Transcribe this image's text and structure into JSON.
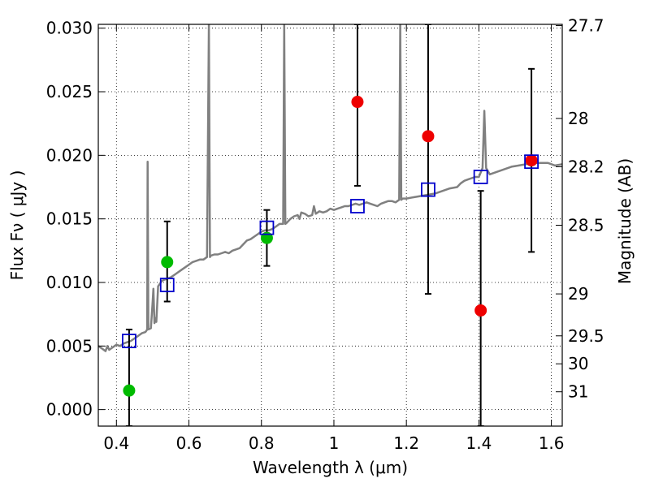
{
  "chart_data": {
    "type": "scatter",
    "xlabel": "Wavelength  λ (μm)",
    "ylabel": "Flux  Fν  ( μJy )",
    "y2label": "Magnitude (AB)",
    "xlim": [
      0.35,
      1.63
    ],
    "ylim": [
      -0.0013,
      0.0303
    ],
    "grid": true,
    "x_ticks": [
      0.4,
      0.6,
      0.8,
      1.0,
      1.2,
      1.4,
      1.6
    ],
    "x_tick_labels": [
      "0.4",
      "0.6",
      "0.8",
      "1",
      "1.2",
      "1.4",
      "1.6"
    ],
    "y_ticks": [
      0.0,
      0.005,
      0.01,
      0.015,
      0.02,
      0.025,
      0.03
    ],
    "y_tick_labels": [
      "0.000",
      "0.005",
      "0.010",
      "0.015",
      "0.020",
      "0.025",
      "0.030"
    ],
    "y2_ticks": [
      {
        "label": "27.7",
        "flux": 0.0302
      },
      {
        "label": "28",
        "flux": 0.0229
      },
      {
        "label": "28.2",
        "flux": 0.0191
      },
      {
        "label": "28.5",
        "flux": 0.0145
      },
      {
        "label": "29",
        "flux": 0.0091
      },
      {
        "label": "29.5",
        "flux": 0.0058
      },
      {
        "label": "30",
        "flux": 0.0036
      },
      {
        "label": "31",
        "flux": 0.0014
      }
    ],
    "model_spectrum": {
      "color": "#808080",
      "points": [
        [
          0.35,
          0.005
        ],
        [
          0.36,
          0.0048
        ],
        [
          0.37,
          0.0046
        ],
        [
          0.375,
          0.005
        ],
        [
          0.38,
          0.0047
        ],
        [
          0.39,
          0.0049
        ],
        [
          0.4,
          0.0051
        ],
        [
          0.41,
          0.005
        ],
        [
          0.42,
          0.0052
        ],
        [
          0.43,
          0.0053
        ],
        [
          0.44,
          0.0054
        ],
        [
          0.45,
          0.0056
        ],
        [
          0.46,
          0.0058
        ],
        [
          0.47,
          0.006
        ],
        [
          0.48,
          0.0061
        ],
        [
          0.485,
          0.0063
        ],
        [
          0.486,
          0.0195
        ],
        [
          0.488,
          0.0063
        ],
        [
          0.495,
          0.0064
        ],
        [
          0.5,
          0.0085
        ],
        [
          0.502,
          0.0095
        ],
        [
          0.505,
          0.0068
        ],
        [
          0.508,
          0.0072
        ],
        [
          0.51,
          0.0069
        ],
        [
          0.515,
          0.0097
        ],
        [
          0.52,
          0.0099
        ],
        [
          0.525,
          0.0101
        ],
        [
          0.53,
          0.0102
        ],
        [
          0.54,
          0.0103
        ],
        [
          0.55,
          0.0104
        ],
        [
          0.56,
          0.0106
        ],
        [
          0.57,
          0.0108
        ],
        [
          0.58,
          0.011
        ],
        [
          0.59,
          0.0112
        ],
        [
          0.6,
          0.0114
        ],
        [
          0.61,
          0.0116
        ],
        [
          0.62,
          0.0117
        ],
        [
          0.63,
          0.0118
        ],
        [
          0.64,
          0.0118
        ],
        [
          0.65,
          0.012
        ],
        [
          0.655,
          0.0303
        ],
        [
          0.658,
          0.012
        ],
        [
          0.66,
          0.0121
        ],
        [
          0.67,
          0.0122
        ],
        [
          0.68,
          0.0122
        ],
        [
          0.69,
          0.0123
        ],
        [
          0.7,
          0.0124
        ],
        [
          0.71,
          0.0123
        ],
        [
          0.72,
          0.0125
        ],
        [
          0.73,
          0.0126
        ],
        [
          0.74,
          0.0127
        ],
        [
          0.75,
          0.013
        ],
        [
          0.76,
          0.0133
        ],
        [
          0.77,
          0.0134
        ],
        [
          0.78,
          0.0136
        ],
        [
          0.79,
          0.0138
        ],
        [
          0.8,
          0.014
        ],
        [
          0.81,
          0.0141
        ],
        [
          0.82,
          0.0141
        ],
        [
          0.83,
          0.0142
        ],
        [
          0.84,
          0.0144
        ],
        [
          0.85,
          0.0146
        ],
        [
          0.86,
          0.0146
        ],
        [
          0.863,
          0.0303
        ],
        [
          0.866,
          0.0146
        ],
        [
          0.87,
          0.0147
        ],
        [
          0.88,
          0.015
        ],
        [
          0.89,
          0.0152
        ],
        [
          0.9,
          0.0153
        ],
        [
          0.905,
          0.015
        ],
        [
          0.91,
          0.0155
        ],
        [
          0.92,
          0.0154
        ],
        [
          0.93,
          0.0152
        ],
        [
          0.94,
          0.0153
        ],
        [
          0.945,
          0.016
        ],
        [
          0.95,
          0.0154
        ],
        [
          0.96,
          0.0156
        ],
        [
          0.97,
          0.0155
        ],
        [
          0.98,
          0.0156
        ],
        [
          0.99,
          0.0158
        ],
        [
          1.0,
          0.0157
        ],
        [
          1.01,
          0.0158
        ],
        [
          1.02,
          0.0159
        ],
        [
          1.03,
          0.016
        ],
        [
          1.04,
          0.016
        ],
        [
          1.05,
          0.0161
        ],
        [
          1.06,
          0.0162
        ],
        [
          1.07,
          0.0161
        ],
        [
          1.08,
          0.0162
        ],
        [
          1.09,
          0.0163
        ],
        [
          1.1,
          0.0162
        ],
        [
          1.11,
          0.0161
        ],
        [
          1.12,
          0.016
        ],
        [
          1.13,
          0.0162
        ],
        [
          1.14,
          0.0163
        ],
        [
          1.15,
          0.0164
        ],
        [
          1.16,
          0.0164
        ],
        [
          1.17,
          0.0163
        ],
        [
          1.18,
          0.0165
        ],
        [
          1.183,
          0.0303
        ],
        [
          1.186,
          0.0165
        ],
        [
          1.19,
          0.0166
        ],
        [
          1.2,
          0.0166
        ],
        [
          1.22,
          0.0167
        ],
        [
          1.24,
          0.0168
        ],
        [
          1.26,
          0.0169
        ],
        [
          1.28,
          0.017
        ],
        [
          1.3,
          0.0172
        ],
        [
          1.32,
          0.0174
        ],
        [
          1.34,
          0.0175
        ],
        [
          1.35,
          0.0178
        ],
        [
          1.36,
          0.018
        ],
        [
          1.37,
          0.0181
        ],
        [
          1.38,
          0.0182
        ],
        [
          1.39,
          0.0183
        ],
        [
          1.4,
          0.0183
        ],
        [
          1.41,
          0.019
        ],
        [
          1.415,
          0.0235
        ],
        [
          1.42,
          0.019
        ],
        [
          1.43,
          0.0185
        ],
        [
          1.45,
          0.0187
        ],
        [
          1.47,
          0.0189
        ],
        [
          1.49,
          0.0191
        ],
        [
          1.51,
          0.0192
        ],
        [
          1.53,
          0.0193
        ],
        [
          1.55,
          0.0194
        ],
        [
          1.57,
          0.0194
        ],
        [
          1.59,
          0.0194
        ],
        [
          1.61,
          0.0192
        ],
        [
          1.63,
          0.0193
        ]
      ]
    },
    "model_photometry": {
      "color": "#0000cc",
      "points": [
        {
          "x": 0.435,
          "y": 0.0054
        },
        {
          "x": 0.54,
          "y": 0.0098
        },
        {
          "x": 0.815,
          "y": 0.0143
        },
        {
          "x": 1.065,
          "y": 0.016
        },
        {
          "x": 1.26,
          "y": 0.0173
        },
        {
          "x": 1.405,
          "y": 0.0183
        },
        {
          "x": 1.545,
          "y": 0.0195
        }
      ]
    },
    "observed_green": {
      "color": "#00bb00",
      "points": [
        {
          "x": 0.435,
          "y": 0.0015
        },
        {
          "x": 0.54,
          "y": 0.0116
        },
        {
          "x": 0.815,
          "y": 0.0135
        }
      ]
    },
    "observed_red": {
      "color": "#ee0000",
      "points": [
        {
          "x": 1.065,
          "y": 0.0242
        },
        {
          "x": 1.26,
          "y": 0.0215
        },
        {
          "x": 1.405,
          "y": 0.0078
        },
        {
          "x": 1.545,
          "y": 0.0196
        }
      ]
    },
    "error_bars": [
      {
        "x": 0.435,
        "low": -0.0013,
        "high": 0.0063
      },
      {
        "x": 0.54,
        "low": 0.0085,
        "high": 0.0148
      },
      {
        "x": 0.815,
        "low": 0.0113,
        "high": 0.0157
      },
      {
        "x": 1.065,
        "low": 0.0176,
        "high": 0.0303
      },
      {
        "x": 1.26,
        "low": 0.0091,
        "high": 0.0303
      },
      {
        "x": 1.405,
        "low": -0.0013,
        "high": 0.0172
      },
      {
        "x": 1.545,
        "low": 0.0124,
        "high": 0.0268
      }
    ]
  }
}
